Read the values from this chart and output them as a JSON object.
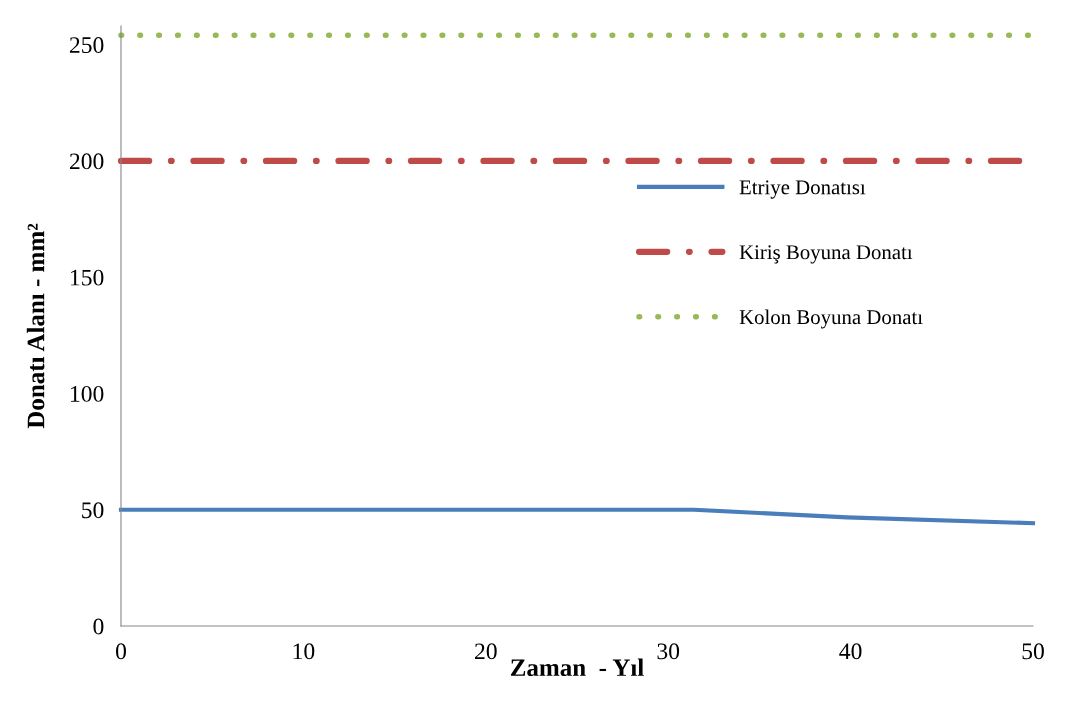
{
  "chart_data": {
    "type": "line",
    "xlabel": "Zaman  - Yıl",
    "ylabel": "Donatı Alanı - mm²",
    "xlim": [
      0,
      50
    ],
    "xticks": [
      0,
      10,
      20,
      30,
      40,
      50
    ],
    "ylim": [
      0,
      258
    ],
    "yticks": [
      0,
      50,
      100,
      150,
      200,
      250
    ],
    "grid": false,
    "legend": "right",
    "marker": "none",
    "series": [
      {
        "name": "Etriye Donatısı",
        "color": "#4a7ebb",
        "line_style": "solid",
        "x": [
          0,
          31.4,
          39.8,
          50
        ],
        "values": [
          50,
          50,
          46.7,
          44.2
        ]
      },
      {
        "name": "Kiriş Boyuna Donatı",
        "color": "#be4b48",
        "line_style": "dashdot",
        "x": [
          0,
          50
        ],
        "values": [
          200,
          200
        ]
      },
      {
        "name": "Kolon Boyuna Donatı",
        "color": "#98b954",
        "line_style": "dotted",
        "x": [
          0,
          50
        ],
        "values": [
          254,
          254
        ]
      }
    ]
  }
}
